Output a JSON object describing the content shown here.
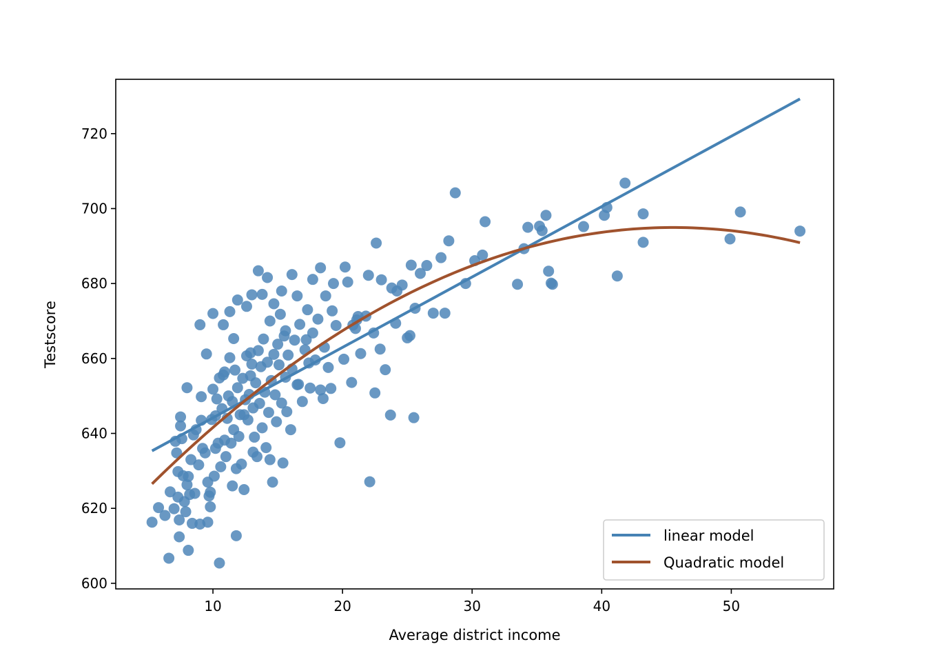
{
  "chart_data": {
    "type": "scatter",
    "xlabel": "Average district income",
    "ylabel": "Testscore",
    "xlim": [
      2.5,
      57.9
    ],
    "ylim": [
      598.5,
      734.5
    ],
    "xticks": [
      10,
      20,
      30,
      40,
      50
    ],
    "yticks": [
      600,
      620,
      640,
      660,
      680,
      700,
      720
    ],
    "grid": false,
    "legend_position": "lower-right",
    "colors": {
      "scatter": "#4f86b8",
      "linear": "#4682b4",
      "quadratic": "#a0522d"
    },
    "scatter_points": [
      [
        5.3,
        616.3
      ],
      [
        5.8,
        620.2
      ],
      [
        6.3,
        618.1
      ],
      [
        6.6,
        606.7
      ],
      [
        6.7,
        624.4
      ],
      [
        7.0,
        619.9
      ],
      [
        7.1,
        637.9
      ],
      [
        7.3,
        629.8
      ],
      [
        7.3,
        623.0
      ],
      [
        7.4,
        616.9
      ],
      [
        7.4,
        612.4
      ],
      [
        7.5,
        644.4
      ],
      [
        7.5,
        642.0
      ],
      [
        7.6,
        638.6
      ],
      [
        7.7,
        628.7
      ],
      [
        7.8,
        621.8
      ],
      [
        7.9,
        619.1
      ],
      [
        8.0,
        626.3
      ],
      [
        8.1,
        608.8
      ],
      [
        8.1,
        628.5
      ],
      [
        8.3,
        633.0
      ],
      [
        8.4,
        616.0
      ],
      [
        8.5,
        639.6
      ],
      [
        8.6,
        624.0
      ],
      [
        8.7,
        641.0
      ],
      [
        8.9,
        631.6
      ],
      [
        9.0,
        615.8
      ],
      [
        9.1,
        649.8
      ],
      [
        9.1,
        643.5
      ],
      [
        9.2,
        636.0
      ],
      [
        9.4,
        634.8
      ],
      [
        9.6,
        616.3
      ],
      [
        9.6,
        627.0
      ],
      [
        9.7,
        623.3
      ],
      [
        9.8,
        620.4
      ],
      [
        9.9,
        643.7
      ],
      [
        10.0,
        651.8
      ],
      [
        10.1,
        628.6
      ],
      [
        10.2,
        636.0
      ],
      [
        10.2,
        644.7
      ],
      [
        10.3,
        649.2
      ],
      [
        10.4,
        637.4
      ],
      [
        10.5,
        654.8
      ],
      [
        10.5,
        605.4
      ],
      [
        10.6,
        631.1
      ],
      [
        10.7,
        646.6
      ],
      [
        10.8,
        655.6
      ],
      [
        10.9,
        638.2
      ],
      [
        11.0,
        633.8
      ],
      [
        11.1,
        644.0
      ],
      [
        11.2,
        650.0
      ],
      [
        11.3,
        660.2
      ],
      [
        11.4,
        637.4
      ],
      [
        11.5,
        626.0
      ],
      [
        11.5,
        648.5
      ],
      [
        11.6,
        641.0
      ],
      [
        11.7,
        656.9
      ],
      [
        11.8,
        612.7
      ],
      [
        11.8,
        630.6
      ],
      [
        11.9,
        652.2
      ],
      [
        12.0,
        639.2
      ],
      [
        12.1,
        645.0
      ],
      [
        12.2,
        631.8
      ],
      [
        12.3,
        654.7
      ],
      [
        12.4,
        625.0
      ],
      [
        12.5,
        649.0
      ],
      [
        12.6,
        660.7
      ],
      [
        12.7,
        643.6
      ],
      [
        12.8,
        650.4
      ],
      [
        12.9,
        661.5
      ],
      [
        13.0,
        658.5
      ],
      [
        13.1,
        646.8
      ],
      [
        13.2,
        639.0
      ],
      [
        13.3,
        653.5
      ],
      [
        13.4,
        633.8
      ],
      [
        13.5,
        662.1
      ],
      [
        13.6,
        648.0
      ],
      [
        13.7,
        657.8
      ],
      [
        13.8,
        641.5
      ],
      [
        13.9,
        665.2
      ],
      [
        14.0,
        651.0
      ],
      [
        14.1,
        636.2
      ],
      [
        14.2,
        659.0
      ],
      [
        14.3,
        645.6
      ],
      [
        14.4,
        670.0
      ],
      [
        14.5,
        654.1
      ],
      [
        14.6,
        627.0
      ],
      [
        14.7,
        661.1
      ],
      [
        14.8,
        650.3
      ],
      [
        14.9,
        643.1
      ],
      [
        15.0,
        663.8
      ],
      [
        15.1,
        658.3
      ],
      [
        15.2,
        671.8
      ],
      [
        15.3,
        648.1
      ],
      [
        15.4,
        632.1
      ],
      [
        15.5,
        666.0
      ],
      [
        15.6,
        655.0
      ],
      [
        15.8,
        660.9
      ],
      [
        16.0,
        641.0
      ],
      [
        16.1,
        657.2
      ],
      [
        16.3,
        664.9
      ],
      [
        16.5,
        653.0
      ],
      [
        16.7,
        669.1
      ],
      [
        16.9,
        648.5
      ],
      [
        17.1,
        662.3
      ],
      [
        17.3,
        673.0
      ],
      [
        17.5,
        652.1
      ],
      [
        17.7,
        666.8
      ],
      [
        17.9,
        659.6
      ],
      [
        18.1,
        670.5
      ],
      [
        18.3,
        651.6
      ],
      [
        18.6,
        663.0
      ],
      [
        18.9,
        657.6
      ],
      [
        19.2,
        672.7
      ],
      [
        19.5,
        668.8
      ],
      [
        19.8,
        637.5
      ],
      [
        20.1,
        659.8
      ],
      [
        20.4,
        680.4
      ],
      [
        20.7,
        653.6
      ],
      [
        21.1,
        670.3
      ],
      [
        21.4,
        661.3
      ],
      [
        21.8,
        671.3
      ],
      [
        22.1,
        627.1
      ],
      [
        22.5,
        650.8
      ],
      [
        22.9,
        662.5
      ],
      [
        23.3,
        657.0
      ],
      [
        23.7,
        644.9
      ],
      [
        24.1,
        669.4
      ],
      [
        24.6,
        679.6
      ],
      [
        25.0,
        665.5
      ],
      [
        25.5,
        644.2
      ],
      [
        26.0,
        682.7
      ],
      [
        26.5,
        684.8
      ],
      [
        27.0,
        672.1
      ],
      [
        27.6,
        686.9
      ],
      [
        28.2,
        691.4
      ],
      [
        28.7,
        704.2
      ],
      [
        29.5,
        680.0
      ],
      [
        30.2,
        686.1
      ],
      [
        30.8,
        687.6
      ],
      [
        31.0,
        696.5
      ],
      [
        33.5,
        679.8
      ],
      [
        34.0,
        689.3
      ],
      [
        34.3,
        695.0
      ],
      [
        35.2,
        695.3
      ],
      [
        35.4,
        694.1
      ],
      [
        35.7,
        698.2
      ],
      [
        35.9,
        683.3
      ],
      [
        36.1,
        680.1
      ],
      [
        36.2,
        679.8
      ],
      [
        38.6,
        695.2
      ],
      [
        40.2,
        698.2
      ],
      [
        40.4,
        700.3
      ],
      [
        41.2,
        682.0
      ],
      [
        41.8,
        706.8
      ],
      [
        43.2,
        698.6
      ],
      [
        43.2,
        691.0
      ],
      [
        49.9,
        691.9
      ],
      [
        50.7,
        699.1
      ],
      [
        55.3,
        694.0
      ],
      [
        8.0,
        652.2
      ],
      [
        9.0,
        669.0
      ],
      [
        9.5,
        661.2
      ],
      [
        10.0,
        672.0
      ],
      [
        10.8,
        669.0
      ],
      [
        11.3,
        672.5
      ],
      [
        11.9,
        675.6
      ],
      [
        12.6,
        673.9
      ],
      [
        13.0,
        677.0
      ],
      [
        13.5,
        683.4
      ],
      [
        13.8,
        677.1
      ],
      [
        14.2,
        681.6
      ],
      [
        14.7,
        674.6
      ],
      [
        15.3,
        678.0
      ],
      [
        15.6,
        667.4
      ],
      [
        16.1,
        682.4
      ],
      [
        16.5,
        676.7
      ],
      [
        17.2,
        665.0
      ],
      [
        17.7,
        681.1
      ],
      [
        18.3,
        684.2
      ],
      [
        18.7,
        676.7
      ],
      [
        19.3,
        680.0
      ],
      [
        20.2,
        684.4
      ],
      [
        21.0,
        668.0
      ],
      [
        22.0,
        682.2
      ],
      [
        22.6,
        690.8
      ],
      [
        23.0,
        681.0
      ],
      [
        23.8,
        678.8
      ],
      [
        25.3,
        684.9
      ],
      [
        27.9,
        672.1
      ],
      [
        7.2,
        634.8
      ],
      [
        8.2,
        623.7
      ],
      [
        9.8,
        624.3
      ],
      [
        10.9,
        656.4
      ],
      [
        12.4,
        645.0
      ],
      [
        13.1,
        635.0
      ],
      [
        14.4,
        633.0
      ],
      [
        15.7,
        645.8
      ],
      [
        16.6,
        653.1
      ],
      [
        17.4,
        658.8
      ],
      [
        18.5,
        649.3
      ],
      [
        19.1,
        652.0
      ],
      [
        20.8,
        668.9
      ],
      [
        22.4,
        666.8
      ],
      [
        24.2,
        678.0
      ],
      [
        25.2,
        666.1
      ],
      [
        25.6,
        673.4
      ],
      [
        21.2,
        671.2
      ],
      [
        11.6,
        665.3
      ],
      [
        12.9,
        655.4
      ]
    ],
    "series": [
      {
        "name": "linear model",
        "intercept": 625.3844,
        "slope": 1.8785,
        "x_range": [
          5.3,
          55.3
        ]
      },
      {
        "name": "Quadratic model",
        "coefficients": [
          607.3,
          3.851,
          -0.0423
        ],
        "x_range": [
          5.3,
          55.3
        ]
      }
    ]
  }
}
